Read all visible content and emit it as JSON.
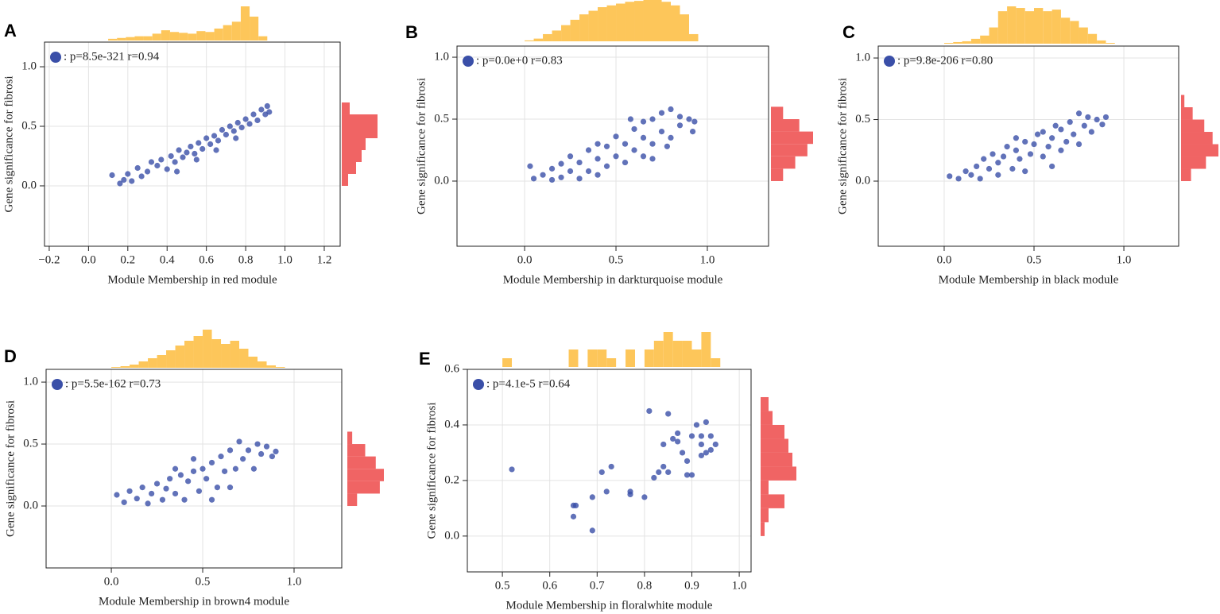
{
  "chart_data": [
    {
      "type": "scatter",
      "panel": "A",
      "annotation": ": p=8.5e-321 r=0.94",
      "xlabel": "Module Membership in red module",
      "ylabel": "Gene significance for fibrosi",
      "color": "#3a4fa8",
      "xlim": [
        -0.224,
        1.281
      ],
      "ylim": [
        -0.507,
        1.207
      ],
      "xticks": [
        {
          "value": -0.2,
          "label": "−0.2"
        },
        {
          "value": 0,
          "label": "0.0"
        },
        0.2,
        0.4,
        0.6,
        0.8,
        {
          "value": 1,
          "label": "1.0"
        },
        1.2
      ],
      "yticks": [
        {
          "value": 0,
          "label": "0.0"
        },
        0.5,
        {
          "value": 1,
          "label": "1.0"
        }
      ],
      "x": [
        0.12,
        0.16,
        0.18,
        0.2,
        0.22,
        0.25,
        0.27,
        0.3,
        0.32,
        0.35,
        0.37,
        0.4,
        0.42,
        0.44,
        0.46,
        0.48,
        0.5,
        0.52,
        0.54,
        0.56,
        0.58,
        0.6,
        0.62,
        0.64,
        0.66,
        0.68,
        0.7,
        0.72,
        0.74,
        0.76,
        0.78,
        0.8,
        0.82,
        0.84,
        0.86,
        0.88,
        0.9,
        0.91,
        0.92,
        0.45,
        0.55,
        0.65,
        0.75
      ],
      "values": [
        0.09,
        0.02,
        0.05,
        0.1,
        0.04,
        0.15,
        0.08,
        0.12,
        0.2,
        0.17,
        0.22,
        0.14,
        0.25,
        0.2,
        0.3,
        0.24,
        0.28,
        0.33,
        0.27,
        0.36,
        0.31,
        0.4,
        0.35,
        0.42,
        0.38,
        0.47,
        0.43,
        0.5,
        0.46,
        0.53,
        0.49,
        0.56,
        0.52,
        0.6,
        0.55,
        0.64,
        0.6,
        0.67,
        0.62,
        0.12,
        0.22,
        0.3,
        0.4
      ],
      "top_histogram": {
        "color": "#fdc65a",
        "bins": [
          0.1,
          0.145,
          0.19,
          0.235,
          0.28,
          0.325,
          0.37,
          0.415,
          0.46,
          0.505,
          0.55,
          0.595,
          0.64,
          0.685,
          0.73,
          0.775,
          0.82,
          0.865,
          0.91
        ],
        "counts": [
          2,
          3,
          4,
          5,
          5,
          8,
          12,
          10,
          9,
          8,
          11,
          10,
          14,
          18,
          22,
          40,
          28,
          5
        ]
      },
      "right_histogram": {
        "color": "#f06464",
        "bins": [
          0,
          0.1,
          0.2,
          0.3,
          0.4,
          0.5,
          0.6,
          0.7
        ],
        "counts": [
          8,
          18,
          25,
          30,
          45,
          45,
          10
        ]
      }
    },
    {
      "type": "scatter",
      "panel": "B",
      "annotation": ": p=0.0e+0 r=0.83",
      "xlabel": "Module Membership in darkturquoise module",
      "ylabel": "Gene significance for fibrosi",
      "color": "#3a4fa8",
      "xlim": [
        -0.37,
        1.335
      ],
      "ylim": [
        -0.526,
        1.09
      ],
      "xticks": [
        {
          "value": 0,
          "label": "0.0"
        },
        0.5,
        {
          "value": 1,
          "label": "1.0"
        }
      ],
      "yticks": [
        {
          "value": 0,
          "label": "0.0"
        },
        0.5,
        {
          "value": 1,
          "label": "1.0"
        }
      ],
      "x": [
        0.03,
        0.05,
        0.1,
        0.15,
        0.15,
        0.2,
        0.2,
        0.25,
        0.25,
        0.3,
        0.3,
        0.35,
        0.35,
        0.4,
        0.4,
        0.45,
        0.45,
        0.5,
        0.5,
        0.55,
        0.55,
        0.6,
        0.6,
        0.65,
        0.65,
        0.65,
        0.7,
        0.7,
        0.75,
        0.75,
        0.8,
        0.8,
        0.85,
        0.85,
        0.9,
        0.92,
        0.93,
        0.78,
        0.58,
        0.4,
        0.7
      ],
      "values": [
        0.12,
        0.02,
        0.05,
        0.01,
        0.1,
        0.03,
        0.14,
        0.08,
        0.2,
        0.02,
        0.15,
        0.25,
        0.08,
        0.18,
        0.3,
        0.12,
        0.28,
        0.2,
        0.36,
        0.15,
        0.3,
        0.42,
        0.25,
        0.35,
        0.48,
        0.2,
        0.3,
        0.5,
        0.4,
        0.55,
        0.35,
        0.58,
        0.45,
        0.52,
        0.5,
        0.4,
        0.48,
        0.28,
        0.5,
        0.05,
        0.18
      ],
      "top_histogram": {
        "color": "#fdc65a",
        "bins": [
          0,
          0.05,
          0.1,
          0.15,
          0.2,
          0.25,
          0.3,
          0.35,
          0.4,
          0.45,
          0.5,
          0.55,
          0.6,
          0.65,
          0.7,
          0.75,
          0.8,
          0.85,
          0.9,
          0.95
        ],
        "counts": [
          1,
          3,
          8,
          12,
          18,
          24,
          30,
          34,
          38,
          40,
          42,
          44,
          45,
          46,
          46,
          44,
          40,
          30,
          8
        ]
      },
      "right_histogram": {
        "color": "#f06464",
        "bins": [
          0,
          0.1,
          0.2,
          0.3,
          0.4,
          0.5,
          0.6
        ],
        "counts": [
          15,
          30,
          45,
          52,
          35,
          15
        ]
      }
    },
    {
      "type": "scatter",
      "panel": "C",
      "annotation": ": p=9.8e-206 r=0.80",
      "xlabel": "Module Membership in black module",
      "ylabel": "Gene significance for fibrosi",
      "color": "#3a4fa8",
      "xlim": [
        -0.367,
        1.305
      ],
      "ylim": [
        -0.529,
        1.097
      ],
      "xticks": [
        {
          "value": 0,
          "label": "0.0"
        },
        0.5,
        {
          "value": 1,
          "label": "1.0"
        }
      ],
      "yticks": [
        {
          "value": 0,
          "label": "0.0"
        },
        0.5,
        {
          "value": 1,
          "label": "1.0"
        }
      ],
      "x": [
        0.03,
        0.08,
        0.12,
        0.15,
        0.18,
        0.2,
        0.22,
        0.25,
        0.27,
        0.3,
        0.3,
        0.33,
        0.35,
        0.38,
        0.4,
        0.42,
        0.45,
        0.45,
        0.48,
        0.5,
        0.52,
        0.55,
        0.55,
        0.58,
        0.6,
        0.62,
        0.65,
        0.65,
        0.68,
        0.7,
        0.72,
        0.75,
        0.75,
        0.78,
        0.8,
        0.82,
        0.85,
        0.88,
        0.9,
        0.6,
        0.4
      ],
      "values": [
        0.04,
        0.02,
        0.08,
        0.05,
        0.12,
        0.02,
        0.18,
        0.1,
        0.22,
        0.05,
        0.15,
        0.2,
        0.28,
        0.1,
        0.25,
        0.18,
        0.32,
        0.08,
        0.22,
        0.3,
        0.38,
        0.2,
        0.4,
        0.28,
        0.35,
        0.45,
        0.25,
        0.42,
        0.32,
        0.48,
        0.38,
        0.55,
        0.3,
        0.45,
        0.52,
        0.4,
        0.5,
        0.46,
        0.52,
        0.12,
        0.35
      ],
      "top_histogram": {
        "color": "#fdc65a",
        "bins": [
          0,
          0.05,
          0.1,
          0.15,
          0.2,
          0.25,
          0.3,
          0.35,
          0.4,
          0.45,
          0.5,
          0.55,
          0.6,
          0.65,
          0.7,
          0.75,
          0.8,
          0.85,
          0.9,
          0.95
        ],
        "counts": [
          1,
          2,
          3,
          6,
          10,
          20,
          40,
          46,
          44,
          40,
          44,
          40,
          42,
          32,
          28,
          20,
          12,
          4,
          1
        ]
      },
      "right_histogram": {
        "color": "#f06464",
        "bins": [
          0,
          0.1,
          0.2,
          0.3,
          0.4,
          0.5,
          0.6,
          0.7
        ],
        "counts": [
          12,
          30,
          45,
          38,
          28,
          14,
          4
        ]
      }
    },
    {
      "type": "scatter",
      "panel": "D",
      "annotation": ": p=5.5e-162 r=0.73",
      "xlabel": "Module Membership in brown4 module",
      "ylabel": "Gene significance for fibrosi",
      "color": "#3a4fa8",
      "xlim": [
        -0.357,
        1.261
      ],
      "ylim": [
        -0.5,
        1.103
      ],
      "xticks": [
        {
          "value": 0,
          "label": "0.0"
        },
        0.5,
        {
          "value": 1,
          "label": "1.0"
        }
      ],
      "yticks": [
        {
          "value": 0,
          "label": "0.0"
        },
        0.5,
        {
          "value": 1,
          "label": "1.0"
        }
      ],
      "x": [
        0.03,
        0.07,
        0.1,
        0.14,
        0.17,
        0.2,
        0.22,
        0.25,
        0.28,
        0.3,
        0.32,
        0.35,
        0.38,
        0.4,
        0.42,
        0.45,
        0.48,
        0.5,
        0.52,
        0.55,
        0.58,
        0.6,
        0.62,
        0.65,
        0.68,
        0.7,
        0.72,
        0.75,
        0.78,
        0.8,
        0.82,
        0.85,
        0.88,
        0.9,
        0.55,
        0.35,
        0.65,
        0.45
      ],
      "values": [
        0.09,
        0.03,
        0.12,
        0.06,
        0.15,
        0.02,
        0.1,
        0.18,
        0.05,
        0.14,
        0.22,
        0.1,
        0.25,
        0.05,
        0.2,
        0.28,
        0.12,
        0.3,
        0.22,
        0.35,
        0.15,
        0.4,
        0.28,
        0.45,
        0.3,
        0.52,
        0.38,
        0.45,
        0.3,
        0.5,
        0.42,
        0.48,
        0.4,
        0.44,
        0.05,
        0.3,
        0.15,
        0.38
      ],
      "top_histogram": {
        "color": "#fdc65a",
        "bins": [
          0,
          0.05,
          0.1,
          0.15,
          0.2,
          0.25,
          0.3,
          0.35,
          0.4,
          0.45,
          0.5,
          0.55,
          0.6,
          0.65,
          0.7,
          0.75,
          0.8,
          0.85,
          0.9,
          0.95
        ],
        "counts": [
          1,
          2,
          4,
          8,
          12,
          16,
          22,
          28,
          34,
          40,
          48,
          36,
          30,
          34,
          24,
          14,
          8,
          3,
          1
        ]
      },
      "right_histogram": {
        "color": "#f06464",
        "bins": [
          0,
          0.1,
          0.2,
          0.3,
          0.4,
          0.5,
          0.6
        ],
        "counts": [
          12,
          40,
          45,
          35,
          22,
          6
        ]
      }
    },
    {
      "type": "scatter",
      "panel": "E",
      "annotation": ": p=4.1e-5 r=0.64",
      "xlabel": "Module Membership in floralwhite module",
      "ylabel": "Gene significance for fibrosi",
      "color": "#3a4fa8",
      "xlim": [
        0.426,
        1.025
      ],
      "ylim": [
        -0.129,
        0.6
      ],
      "xticks": [
        0.5,
        0.6,
        0.7,
        0.8,
        0.9,
        {
          "value": 1,
          "label": "1.0"
        }
      ],
      "yticks": [
        {
          "value": 0,
          "label": "0.0"
        },
        0.2,
        0.4,
        0.6
      ],
      "x": [
        0.52,
        0.65,
        0.655,
        0.65,
        0.69,
        0.69,
        0.71,
        0.72,
        0.73,
        0.77,
        0.77,
        0.8,
        0.81,
        0.82,
        0.83,
        0.84,
        0.84,
        0.85,
        0.85,
        0.86,
        0.87,
        0.87,
        0.88,
        0.89,
        0.89,
        0.9,
        0.9,
        0.91,
        0.92,
        0.92,
        0.93,
        0.93,
        0.94,
        0.94,
        0.95,
        0.92
      ],
      "values": [
        0.24,
        0.11,
        0.11,
        0.07,
        0.14,
        0.02,
        0.23,
        0.16,
        0.25,
        0.16,
        0.15,
        0.14,
        0.45,
        0.21,
        0.23,
        0.25,
        0.33,
        0.44,
        0.23,
        0.35,
        0.37,
        0.34,
        0.3,
        0.27,
        0.22,
        0.22,
        0.36,
        0.4,
        0.29,
        0.33,
        0.41,
        0.3,
        0.36,
        0.31,
        0.33,
        0.36
      ],
      "top_histogram": {
        "color": "#fdc65a",
        "bins": [
          0.5,
          0.52,
          0.54,
          0.56,
          0.58,
          0.6,
          0.62,
          0.64,
          0.66,
          0.68,
          0.7,
          0.72,
          0.74,
          0.76,
          0.78,
          0.8,
          0.82,
          0.84,
          0.86,
          0.88,
          0.9,
          0.92,
          0.94,
          0.96
        ],
        "counts": [
          1,
          0,
          0,
          0,
          0,
          0,
          0,
          2,
          0,
          2,
          2,
          1,
          0,
          2,
          0,
          2,
          3,
          4,
          3,
          3,
          2,
          4,
          1
        ]
      },
      "right_histogram": {
        "color": "#f06464",
        "bins": [
          0,
          0.05,
          0.1,
          0.15,
          0.2,
          0.25,
          0.3,
          0.35,
          0.4,
          0.45,
          0.5
        ],
        "counts": [
          1,
          2,
          6,
          2,
          9,
          8,
          7,
          6,
          3,
          2
        ]
      }
    }
  ]
}
